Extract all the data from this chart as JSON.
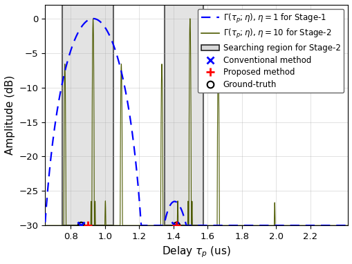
{
  "title": "",
  "xlabel": "Delay $\\tau_p$ (us)",
  "ylabel": "Amplitude (dB)",
  "xlim": [
    0.65,
    2.42
  ],
  "ylim": [
    -30,
    2
  ],
  "yticks": [
    0,
    -5,
    -10,
    -15,
    -20,
    -25,
    -30
  ],
  "xticks": [
    0.8,
    1.0,
    1.2,
    1.4,
    1.6,
    1.8,
    2.0,
    2.2
  ],
  "stage1_color": "#0000FF",
  "stage2_color": "#4d5a00",
  "search_region1": [
    0.75,
    1.05
  ],
  "search_region2": [
    1.35,
    1.575
  ],
  "tau_true1": 0.93,
  "tau_true2": 1.497,
  "conventional_x1": 0.86,
  "conventional_x2": 1.41,
  "proposed_x1": 0.9,
  "proposed_x2": 1.415,
  "gt_x1": 0.86,
  "gt_x2": 1.415,
  "marker_y": -30,
  "background_color": "#ffffff"
}
